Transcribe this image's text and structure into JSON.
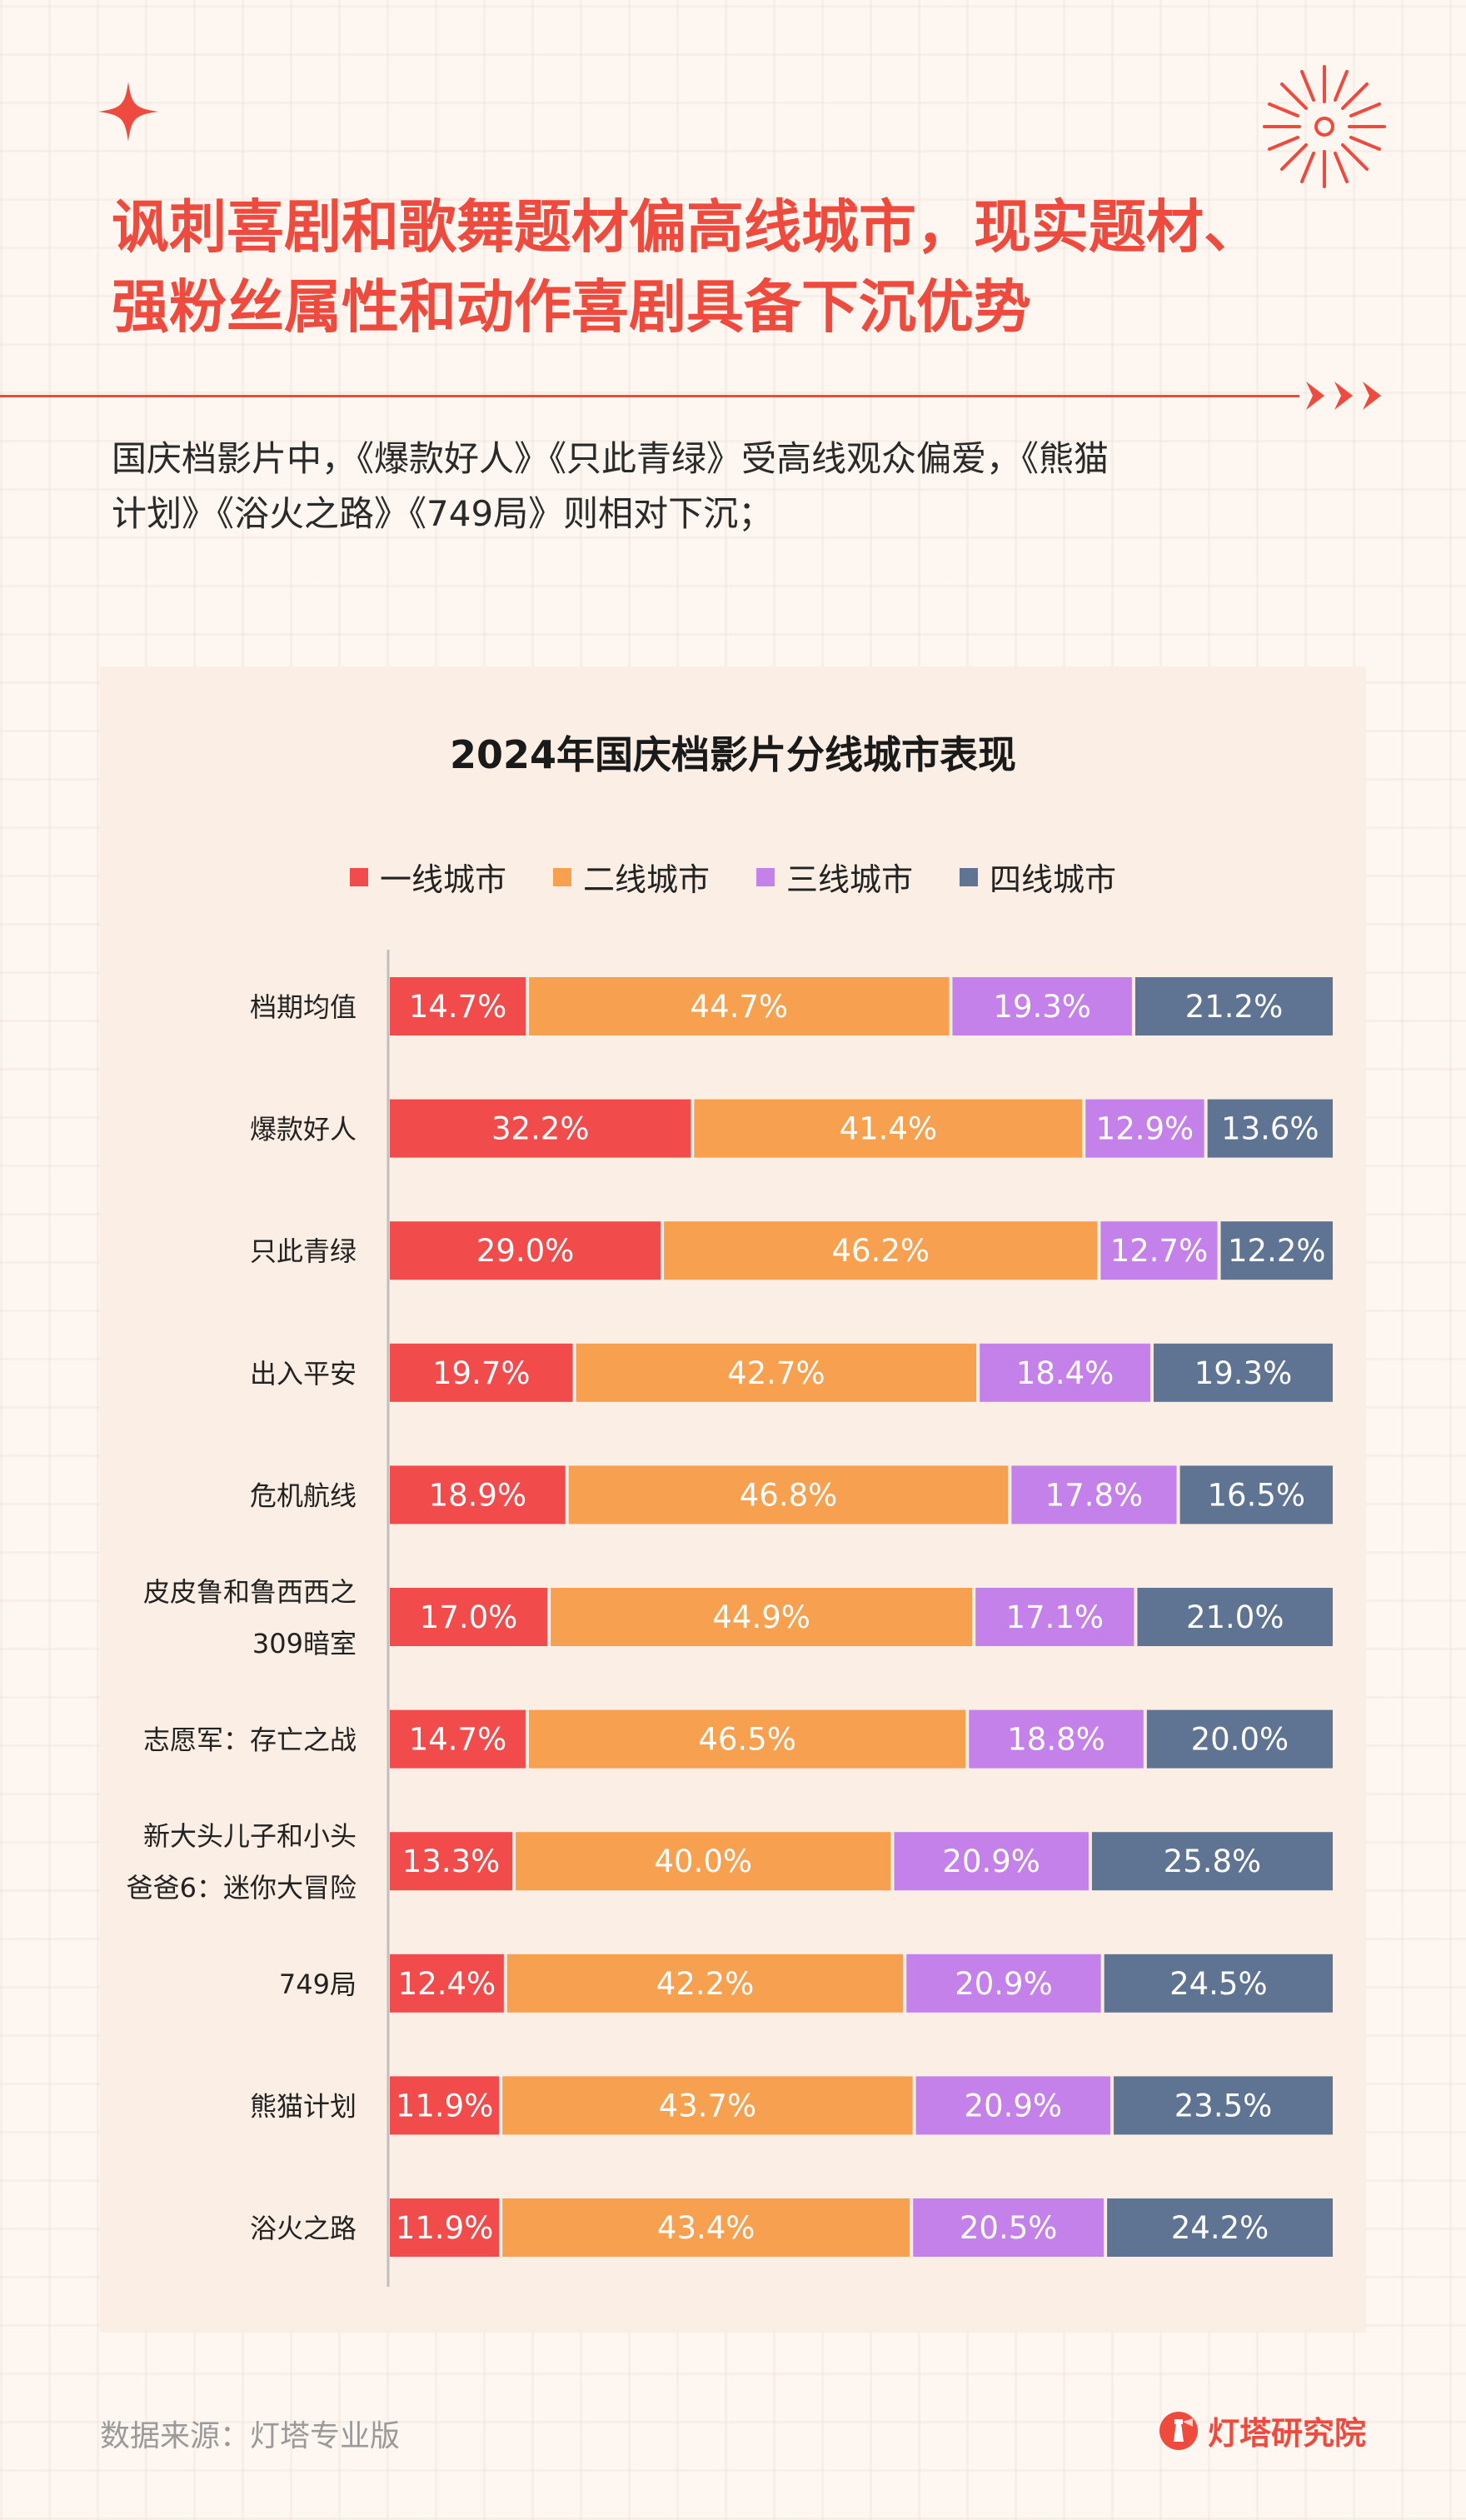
{
  "headline": {
    "line1": "讽刺喜剧和歌舞题材偏高线城市，现实题材、",
    "line2": "强粉丝属性和动作喜剧具备下沉优势"
  },
  "intro": {
    "line1": "国庆档影片中，《爆款好人》《只此青绿》受高线观众偏爱，《熊猫",
    "line2": "计划》《浴火之路》《749局》则相对下沉；"
  },
  "colors": {
    "accent": "#ee4a3d",
    "tier1": "#f24b4b",
    "tier2": "#f7a04f",
    "tier3": "#c581ea",
    "tier4": "#5f7392"
  },
  "chart_data": {
    "type": "bar",
    "orientation": "horizontal",
    "stacked": true,
    "title": "2024年国庆档影片分线城市表现",
    "legend_position": "top",
    "categories": [
      [
        "档期均值"
      ],
      [
        "爆款好人"
      ],
      [
        "只此青绿"
      ],
      [
        "出入平安"
      ],
      [
        "危机航线"
      ],
      [
        "皮皮鲁和鲁西西之",
        "309暗室"
      ],
      [
        "志愿军：存亡之战"
      ],
      [
        "新大头儿子和小头",
        "爸爸6：迷你大冒险"
      ],
      [
        "749局"
      ],
      [
        "熊猫计划"
      ],
      [
        "浴火之路"
      ]
    ],
    "series": [
      {
        "name": "一线城市",
        "color": "#f24b4b",
        "values": [
          14.7,
          32.2,
          29.0,
          19.7,
          18.9,
          17.0,
          14.7,
          13.3,
          12.4,
          11.9,
          11.9
        ]
      },
      {
        "name": "二线城市",
        "color": "#f7a04f",
        "values": [
          44.7,
          41.4,
          46.2,
          42.7,
          46.8,
          44.9,
          46.5,
          40.0,
          42.2,
          43.7,
          43.4
        ]
      },
      {
        "name": "三线城市",
        "color": "#c581ea",
        "values": [
          19.3,
          12.9,
          12.7,
          18.4,
          17.8,
          17.1,
          18.8,
          20.9,
          20.9,
          20.9,
          20.5
        ]
      },
      {
        "name": "四线城市",
        "color": "#5f7392",
        "values": [
          21.2,
          13.6,
          12.2,
          19.3,
          16.5,
          21.0,
          20.0,
          25.8,
          24.5,
          23.5,
          24.2
        ]
      }
    ],
    "value_suffix": "%"
  },
  "footer": {
    "source": "数据来源：灯塔专业版",
    "brand": "灯塔研究院"
  }
}
